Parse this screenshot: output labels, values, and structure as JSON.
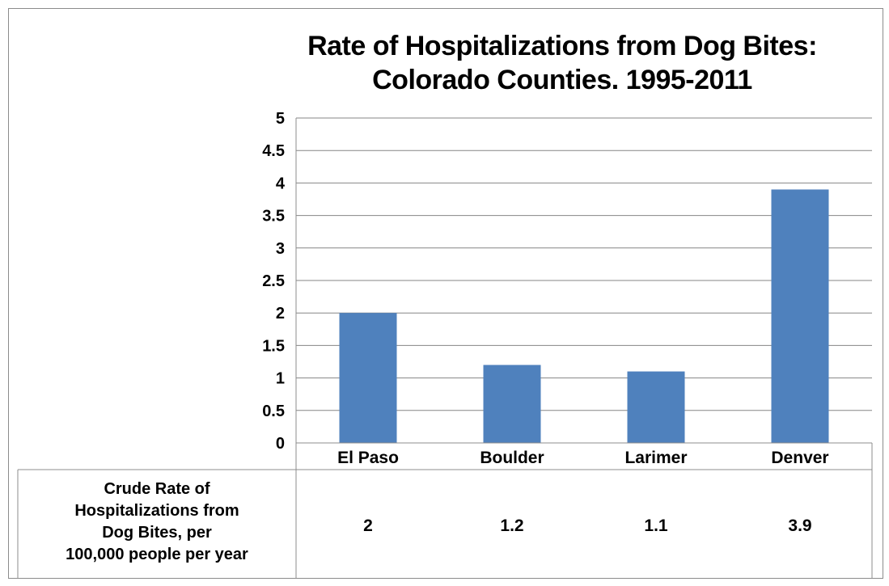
{
  "chart_data": {
    "type": "bar",
    "title": "Rate of Hospitalizations from Dog Bites:",
    "subtitle": "Colorado Counties. 1995-2011",
    "categories": [
      "El Paso",
      "Boulder",
      "Larimer",
      "Denver"
    ],
    "series": [
      {
        "name": "Crude Rate of Hospitalizations from Dog Bites, per 100,000 people per year",
        "values": [
          2,
          1.2,
          1.1,
          3.9
        ],
        "color": "#4f81bd"
      }
    ],
    "ylim": [
      0,
      5
    ],
    "yticks": [
      "0",
      "0.5",
      "1",
      "1.5",
      "2",
      "2.5",
      "3",
      "3.5",
      "4",
      "4.5",
      "5"
    ],
    "grid": true,
    "legend": "data table below chart",
    "data_table": {
      "row_label_lines": [
        "Crude Rate of",
        "Hospitalizations from",
        "Dog Bites, per",
        "100,000 people per year"
      ],
      "values": [
        "2",
        "1.2",
        "1.1",
        "3.9"
      ]
    }
  },
  "colors": {
    "bar": "#4f81bd",
    "gridline": "#868686",
    "border": "#8c8c8c"
  }
}
